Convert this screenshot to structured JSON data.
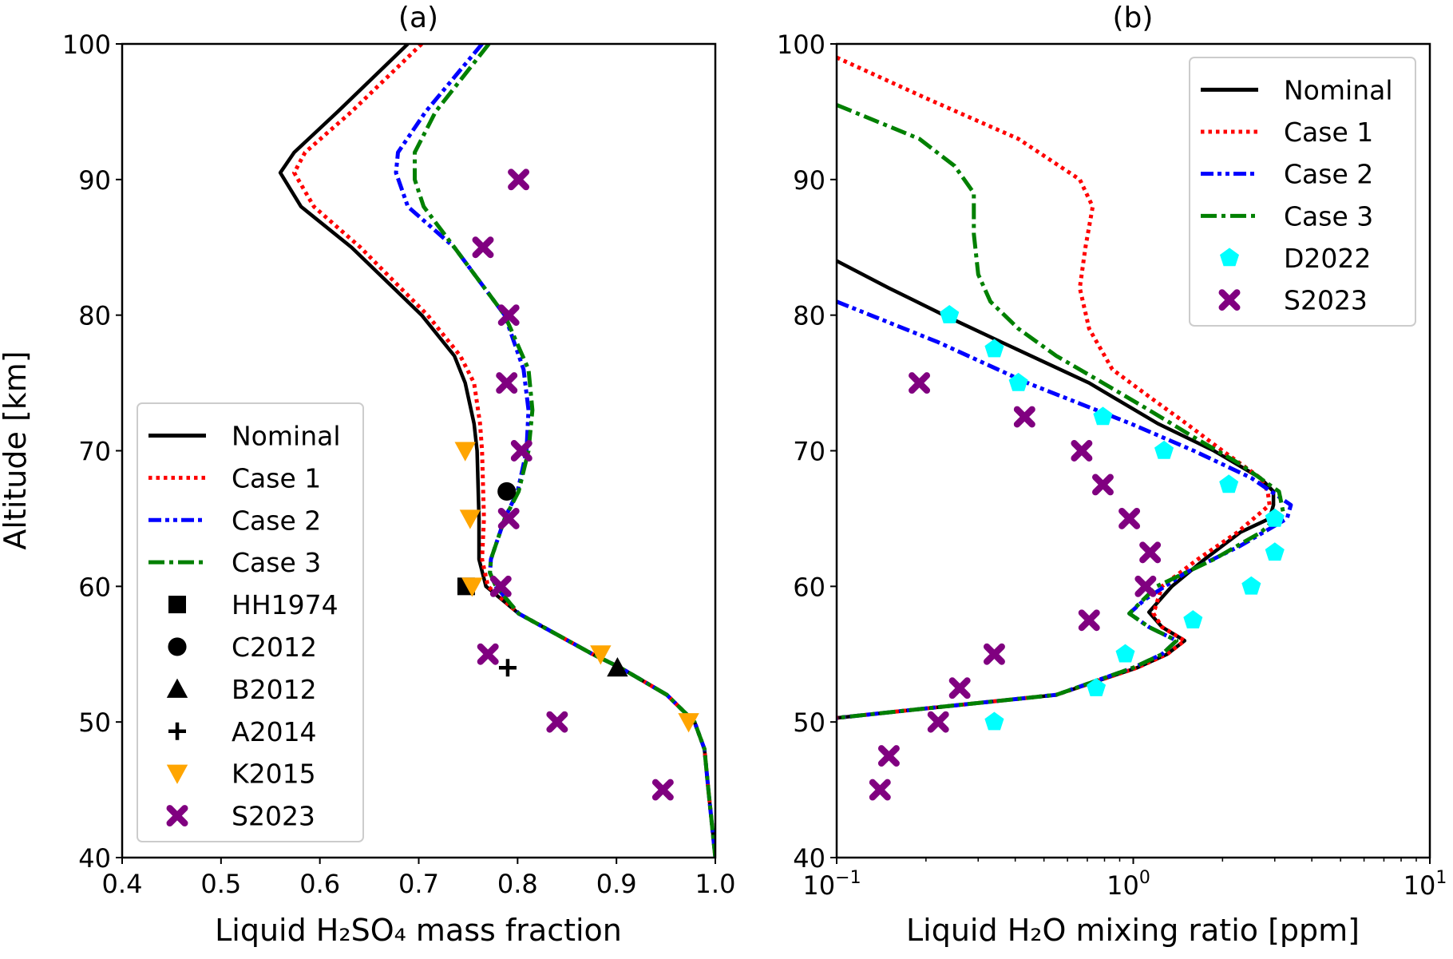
{
  "chart_data": [
    {
      "type": "line",
      "title": "(a)",
      "xlabel": "Liquid H₂SO₄ mass fraction",
      "ylabel": "Altitude [km]",
      "xlim": [
        0.4,
        1.0
      ],
      "ylim": [
        40,
        100
      ],
      "xscale": "linear",
      "xticks": [
        "0.4",
        "0.5",
        "0.6",
        "0.7",
        "0.8",
        "0.9",
        "1.0"
      ],
      "yticks": [
        "40",
        "50",
        "60",
        "70",
        "80",
        "90",
        "100"
      ],
      "grid": false,
      "legend": "center-left",
      "series": [
        {
          "name": "Nominal",
          "color": "#000000",
          "style": "solid",
          "points": [
            [
              0.689,
              100
            ],
            [
              0.618,
              95
            ],
            [
              0.574,
              92
            ],
            [
              0.56,
              90.5
            ],
            [
              0.581,
              88
            ],
            [
              0.632,
              85
            ],
            [
              0.703,
              80
            ],
            [
              0.736,
              77
            ],
            [
              0.747,
              75
            ],
            [
              0.756,
              72
            ],
            [
              0.759,
              70
            ],
            [
              0.761,
              65
            ],
            [
              0.761,
              62
            ],
            [
              0.768,
              60
            ],
            [
              0.801,
              58
            ],
            [
              0.876,
              55
            ],
            [
              0.904,
              54
            ],
            [
              0.951,
              52
            ],
            [
              0.979,
              50
            ],
            [
              0.989,
              48
            ],
            [
              0.993,
              45
            ],
            [
              1.0,
              40
            ]
          ]
        },
        {
          "name": "Case 1",
          "color": "#ff0000",
          "style": "dotted",
          "points": [
            [
              0.703,
              100
            ],
            [
              0.632,
              95
            ],
            [
              0.585,
              92
            ],
            [
              0.574,
              90.5
            ],
            [
              0.594,
              88
            ],
            [
              0.641,
              85
            ],
            [
              0.709,
              80
            ],
            [
              0.742,
              77
            ],
            [
              0.756,
              75
            ],
            [
              0.762,
              72
            ],
            [
              0.764,
              70
            ],
            [
              0.766,
              65
            ],
            [
              0.764,
              62
            ],
            [
              0.77,
              60
            ],
            [
              0.801,
              58
            ],
            [
              0.876,
              55
            ],
            [
              0.904,
              54
            ],
            [
              0.951,
              52
            ],
            [
              0.979,
              50
            ],
            [
              0.989,
              48
            ],
            [
              0.993,
              45
            ],
            [
              1.0,
              40
            ]
          ]
        },
        {
          "name": "Case 2",
          "color": "#0000ff",
          "style": "dashdotdot",
          "points": [
            [
              0.764,
              100
            ],
            [
              0.707,
              95
            ],
            [
              0.679,
              92
            ],
            [
              0.677,
              90.5
            ],
            [
              0.689,
              88
            ],
            [
              0.736,
              85
            ],
            [
              0.787,
              80
            ],
            [
              0.806,
              76
            ],
            [
              0.811,
              73
            ],
            [
              0.809,
              70
            ],
            [
              0.8,
              67
            ],
            [
              0.787,
              65
            ],
            [
              0.773,
              62
            ],
            [
              0.772,
              61
            ],
            [
              0.778,
              60
            ],
            [
              0.801,
              58
            ],
            [
              0.876,
              55
            ],
            [
              0.904,
              54
            ],
            [
              0.951,
              52
            ],
            [
              0.979,
              50
            ],
            [
              0.989,
              48
            ],
            [
              0.993,
              45
            ],
            [
              1.0,
              40
            ]
          ]
        },
        {
          "name": "Case 3",
          "color": "#008000",
          "style": "dashdot",
          "points": [
            [
              0.771,
              100
            ],
            [
              0.717,
              95
            ],
            [
              0.696,
              92
            ],
            [
              0.696,
              90
            ],
            [
              0.705,
              88
            ],
            [
              0.736,
              85
            ],
            [
              0.787,
              80
            ],
            [
              0.811,
              76
            ],
            [
              0.815,
              73
            ],
            [
              0.811,
              70
            ],
            [
              0.801,
              67
            ],
            [
              0.787,
              65
            ],
            [
              0.773,
              62
            ],
            [
              0.772,
              61
            ],
            [
              0.778,
              60
            ],
            [
              0.801,
              58
            ],
            [
              0.876,
              55
            ],
            [
              0.904,
              54
            ],
            [
              0.951,
              52
            ],
            [
              0.979,
              50
            ],
            [
              0.989,
              48
            ],
            [
              0.993,
              45
            ],
            [
              1.0,
              40
            ]
          ]
        },
        {
          "name": "HH1974",
          "color": "#000000",
          "marker": "square",
          "points": [
            [
              0.748,
              60
            ]
          ]
        },
        {
          "name": "C2012",
          "color": "#000000",
          "marker": "circle",
          "points": [
            [
              0.789,
              67
            ]
          ]
        },
        {
          "name": "B2012",
          "color": "#000000",
          "marker": "triangle-up",
          "points": [
            [
              0.901,
              54
            ]
          ]
        },
        {
          "name": "A2014",
          "color": "#000000",
          "marker": "plus",
          "points": [
            [
              0.79,
              54
            ]
          ]
        },
        {
          "name": "K2015",
          "color": "#ffa500",
          "marker": "triangle-down",
          "points": [
            [
              0.747,
              70
            ],
            [
              0.752,
              65
            ],
            [
              0.754,
              60
            ],
            [
              0.884,
              55
            ],
            [
              0.973,
              50
            ]
          ]
        },
        {
          "name": "S2023",
          "color": "#800080",
          "marker": "x",
          "points": [
            [
              0.801,
              90
            ],
            [
              0.765,
              85
            ],
            [
              0.791,
              80
            ],
            [
              0.789,
              75
            ],
            [
              0.804,
              70
            ],
            [
              0.791,
              65
            ],
            [
              0.783,
              60
            ],
            [
              0.77,
              55
            ],
            [
              0.84,
              50
            ],
            [
              0.947,
              45
            ]
          ]
        }
      ]
    },
    {
      "type": "line",
      "title": "(b)",
      "xlabel": "Liquid H₂O mixing ratio [ppm]",
      "ylabel": "",
      "xlim": [
        0.1,
        10
      ],
      "ylim": [
        40,
        100
      ],
      "xscale": "log",
      "xticks": [
        {
          "base": "10",
          "exp": "−1"
        },
        {
          "base": "10",
          "exp": "0"
        },
        {
          "base": "10",
          "exp": "1"
        }
      ],
      "yticks": [
        "40",
        "50",
        "60",
        "70",
        "80",
        "90",
        "100"
      ],
      "grid": false,
      "legend": "top-right",
      "series": [
        {
          "name": "Nominal",
          "color": "#000000",
          "style": "solid",
          "points": [
            [
              0.1,
              84
            ],
            [
              0.15,
              82
            ],
            [
              0.23,
              80
            ],
            [
              0.36,
              78
            ],
            [
              0.71,
              75
            ],
            [
              1.21,
              72
            ],
            [
              1.87,
              70
            ],
            [
              2.68,
              68
            ],
            [
              2.97,
              67
            ],
            [
              2.97,
              66
            ],
            [
              2.88,
              65
            ],
            [
              2.3,
              64
            ],
            [
              1.74,
              62
            ],
            [
              1.35,
              60
            ],
            [
              1.13,
              58.1
            ],
            [
              1.25,
              57
            ],
            [
              1.49,
              56
            ],
            [
              1.3,
              55
            ],
            [
              1.03,
              54
            ],
            [
              0.55,
              52
            ],
            [
              0.2,
              51
            ],
            [
              0.1,
              50.3
            ]
          ]
        },
        {
          "name": "Case 1",
          "color": "#ff0000",
          "style": "dotted",
          "points": [
            [
              0.1,
              99
            ],
            [
              0.2,
              96
            ],
            [
              0.41,
              93
            ],
            [
              0.66,
              90
            ],
            [
              0.73,
              88
            ],
            [
              0.69,
              85
            ],
            [
              0.66,
              82
            ],
            [
              0.71,
              79
            ],
            [
              0.85,
              76
            ],
            [
              1.13,
              74
            ],
            [
              1.51,
              72
            ],
            [
              2.0,
              70
            ],
            [
              2.68,
              68
            ],
            [
              2.84,
              67
            ],
            [
              2.88,
              66
            ],
            [
              2.25,
              64
            ],
            [
              1.65,
              62
            ],
            [
              1.25,
              60
            ],
            [
              1.17,
              58
            ],
            [
              1.25,
              57
            ],
            [
              1.49,
              56
            ],
            [
              1.3,
              55
            ],
            [
              1.03,
              54
            ],
            [
              0.55,
              52
            ],
            [
              0.2,
              51
            ],
            [
              0.1,
              50.3
            ]
          ]
        },
        {
          "name": "Case 2",
          "color": "#0000ff",
          "style": "dashdotdot",
          "points": [
            [
              0.1,
              81
            ],
            [
              0.22,
              78
            ],
            [
              0.44,
              75
            ],
            [
              0.98,
              72
            ],
            [
              1.6,
              70
            ],
            [
              2.5,
              68
            ],
            [
              3.4,
              66
            ],
            [
              3.3,
              65
            ],
            [
              2.3,
              63
            ],
            [
              1.5,
              61
            ],
            [
              1.09,
              59
            ],
            [
              0.97,
              58
            ],
            [
              1.13,
              57
            ],
            [
              1.4,
              56
            ],
            [
              1.25,
              55
            ],
            [
              1.0,
              54
            ],
            [
              0.55,
              52
            ],
            [
              0.2,
              51
            ],
            [
              0.1,
              50.3
            ]
          ]
        },
        {
          "name": "Case 3",
          "color": "#008000",
          "style": "dashdot",
          "points": [
            [
              0.1,
              95.5
            ],
            [
              0.19,
              93
            ],
            [
              0.25,
              91
            ],
            [
              0.29,
              89
            ],
            [
              0.29,
              86
            ],
            [
              0.3,
              83
            ],
            [
              0.33,
              81
            ],
            [
              0.41,
              79
            ],
            [
              0.55,
              77
            ],
            [
              0.79,
              75
            ],
            [
              1.13,
              73
            ],
            [
              1.6,
              71
            ],
            [
              2.3,
              69
            ],
            [
              3.1,
              67
            ],
            [
              3.2,
              65.5
            ],
            [
              2.7,
              64
            ],
            [
              1.87,
              62
            ],
            [
              1.2,
              60
            ],
            [
              0.97,
              58
            ],
            [
              1.13,
              57
            ],
            [
              1.4,
              56
            ],
            [
              1.25,
              55
            ],
            [
              1.0,
              54
            ],
            [
              0.55,
              52
            ],
            [
              0.2,
              51
            ],
            [
              0.1,
              50.3
            ]
          ]
        },
        {
          "name": "D2022",
          "color": "#00ffff",
          "marker": "pentagon",
          "points": [
            [
              0.24,
              80
            ],
            [
              0.34,
              77.5
            ],
            [
              0.41,
              75
            ],
            [
              0.79,
              72.5
            ],
            [
              1.27,
              70
            ],
            [
              2.1,
              67.5
            ],
            [
              3.0,
              65
            ],
            [
              3.0,
              62.5
            ],
            [
              2.5,
              60
            ],
            [
              1.59,
              57.5
            ],
            [
              0.94,
              55
            ],
            [
              0.75,
              52.5
            ],
            [
              0.34,
              50
            ]
          ]
        },
        {
          "name": "S2023",
          "color": "#800080",
          "marker": "x",
          "points": [
            [
              0.19,
              75
            ],
            [
              0.43,
              72.5
            ],
            [
              0.67,
              70
            ],
            [
              0.79,
              67.5
            ],
            [
              0.97,
              65
            ],
            [
              1.14,
              62.5
            ],
            [
              1.1,
              60
            ],
            [
              0.71,
              57.5
            ],
            [
              0.34,
              55
            ],
            [
              0.26,
              52.5
            ],
            [
              0.22,
              50
            ],
            [
              0.15,
              47.5
            ],
            [
              0.14,
              45
            ]
          ]
        }
      ]
    }
  ]
}
